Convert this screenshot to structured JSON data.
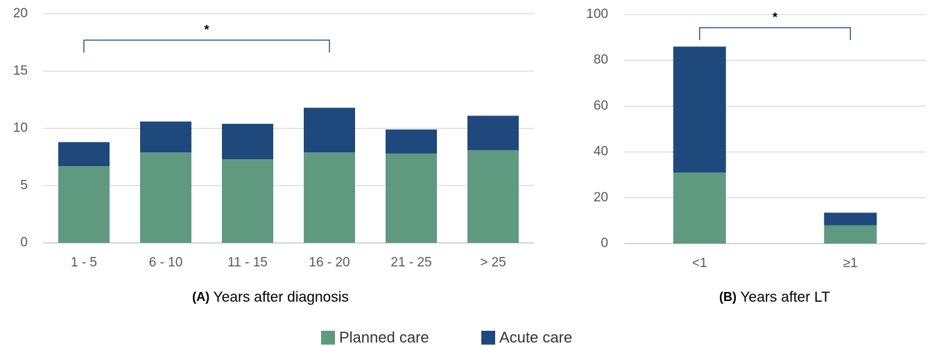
{
  "chart_data": [
    {
      "type": "stacked_bar",
      "panel_label": "(A)",
      "xlabel": "Years after diagnosis",
      "categories": [
        "1 - 5",
        "6 - 10",
        "11 - 15",
        "16 - 20",
        "21 - 25",
        "> 25"
      ],
      "series": [
        {
          "name": "Planned care",
          "color": "#5f9a80",
          "values": [
            6.7,
            7.9,
            7.3,
            7.9,
            7.8,
            8.1
          ]
        },
        {
          "name": "Acute care",
          "color": "#1f497d",
          "values": [
            2.1,
            2.7,
            3.1,
            3.9,
            2.1,
            3.0
          ]
        }
      ],
      "ylim": [
        0,
        20
      ],
      "yticks": [
        0,
        5,
        10,
        15,
        20
      ],
      "grid": true,
      "annotations": [
        {
          "text": "*",
          "between": [
            0,
            3
          ]
        }
      ]
    },
    {
      "type": "stacked_bar",
      "panel_label": "(B)",
      "xlabel": "Years after LT",
      "categories": [
        "<1",
        "≥1"
      ],
      "series": [
        {
          "color": "#5f9a80",
          "values": [
            31,
            8
          ]
        },
        {
          "color": "#1f497d",
          "values": [
            55,
            5.5
          ]
        }
      ],
      "ylim": [
        0,
        100
      ],
      "yticks": [
        0,
        20,
        40,
        60,
        80,
        100
      ],
      "grid": true,
      "annotations": [
        {
          "text": "*",
          "between": [
            0,
            1
          ]
        }
      ]
    }
  ]
}
